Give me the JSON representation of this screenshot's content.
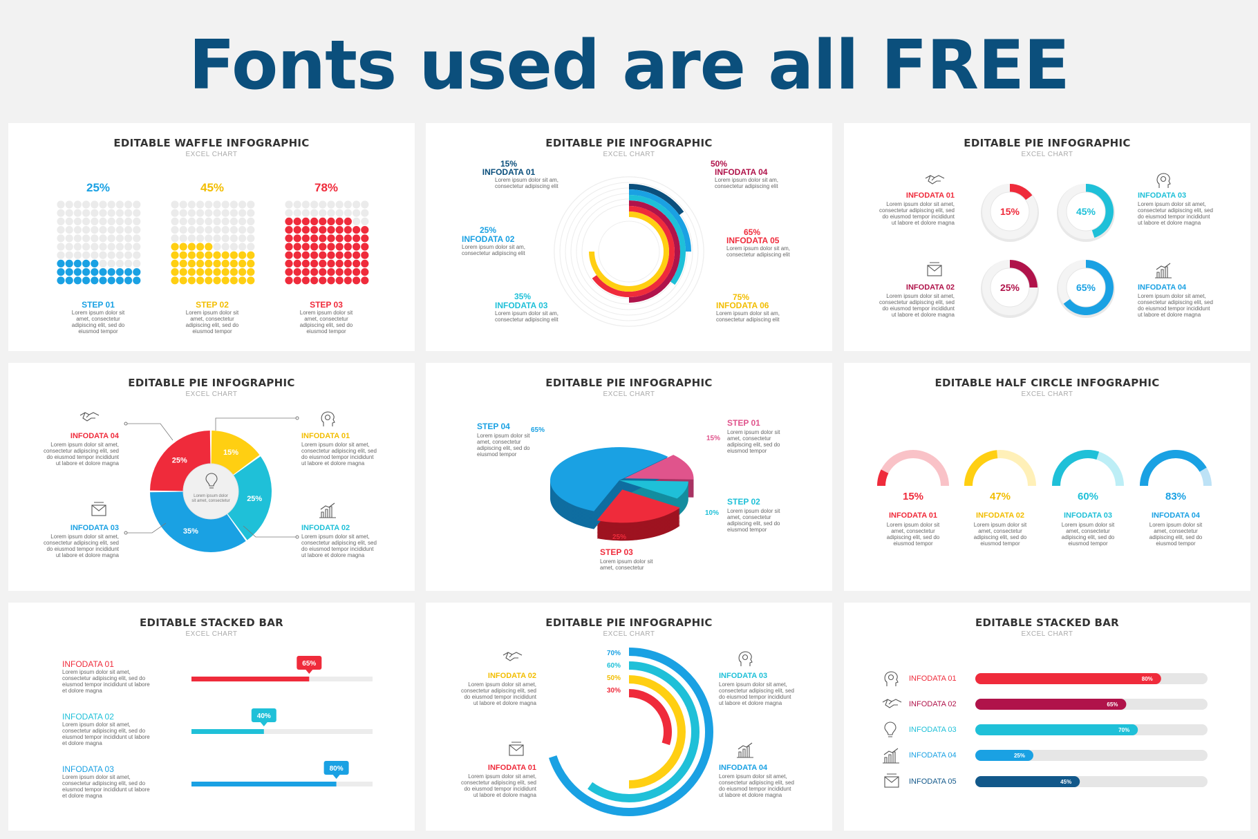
{
  "hero_title": "Fonts used are all FREE",
  "colors": {
    "navy": "#0b4f7c",
    "blue": "#1aa1e3",
    "cyan": "#1fc0d8",
    "yellow": "#ffcf12",
    "red": "#ef2b3b",
    "crimson": "#b0134a",
    "pink": "#e0548c",
    "darkblue": "#12588a"
  },
  "lorem_short": "Lorem ipsum dolor sit amet, consectetur adipiscing elit, sed do eiusmod tempor",
  "lorem_long": "Lorem ipsum dolor sit amet, consectetur adipiscing elit, sed do eiusmod tempor incididunt ut labore et dolore magna",
  "lorem_two": "Lorem ipsum dolor sit am, consectetur adipiscing elit",
  "lorem_step3": "Lorem ipsum dolor sit amet, consectetur",
  "chart_data": [
    {
      "type": "waffle",
      "title": "EDITABLE WAFFLE INFOGRAPHIC",
      "subtitle": "EXCEL CHART",
      "items": [
        {
          "label": "STEP 01",
          "value": 25,
          "display": "25%",
          "color": "#1aa1e3"
        },
        {
          "label": "STEP 02",
          "value": 45,
          "display": "45%",
          "color": "#ffcf12"
        },
        {
          "label": "STEP 03",
          "value": 78,
          "display": "78%",
          "color": "#ef2b3b"
        }
      ]
    },
    {
      "type": "pie",
      "title": "EDITABLE PIE INFOGRAPHIC",
      "subtitle": "EXCEL CHART",
      "items": [
        {
          "label": "INFODATA 01",
          "value": 15,
          "display": "15%",
          "color": "#0b4f7c"
        },
        {
          "label": "INFODATA 02",
          "value": 25,
          "display": "25%",
          "color": "#1aa1e3"
        },
        {
          "label": "INFODATA 03",
          "value": 35,
          "display": "35%",
          "color": "#1fc0d8"
        },
        {
          "label": "INFODATA 04",
          "value": 50,
          "display": "50%",
          "color": "#b0134a"
        },
        {
          "label": "INFODATA 05",
          "value": 65,
          "display": "65%",
          "color": "#ef2b3b"
        },
        {
          "label": "INFODATA 06",
          "value": 75,
          "display": "75%",
          "color": "#ffcf12"
        }
      ]
    },
    {
      "type": "pie",
      "title": "EDITABLE PIE INFOGRAPHIC",
      "subtitle": "EXCEL CHART",
      "items": [
        {
          "label": "INFODATA 01",
          "value": 15,
          "display": "15%",
          "color": "#ef2b3b",
          "icon": "handshake-icon"
        },
        {
          "label": "INFODATA 02",
          "value": 25,
          "display": "25%",
          "color": "#b0134a",
          "icon": "envelope-icon"
        },
        {
          "label": "INFODATA 03",
          "value": 45,
          "display": "45%",
          "color": "#1fc0d8",
          "icon": "head-gear-icon"
        },
        {
          "label": "INFODATA 04",
          "value": 65,
          "display": "65%",
          "color": "#1aa1e3",
          "icon": "bar-chart-icon"
        }
      ]
    },
    {
      "type": "pie",
      "title": "EDITABLE PIE INFOGRAPHIC",
      "subtitle": "EXCEL CHART",
      "items": [
        {
          "label": "INFODATA 01",
          "value": 15,
          "display": "15%",
          "color": "#ffcf12",
          "icon": "head-gear-icon"
        },
        {
          "label": "INFODATA 02",
          "value": 25,
          "display": "25%",
          "color": "#1fc0d8",
          "icon": "bar-chart-icon"
        },
        {
          "label": "INFODATA 03",
          "value": 35,
          "display": "35%",
          "color": "#1aa1e3",
          "icon": "envelope-icon"
        },
        {
          "label": "INFODATA 04",
          "value": 25,
          "display": "25%",
          "color": "#ef2b3b",
          "icon": "handshake-icon"
        }
      ]
    },
    {
      "type": "pie",
      "title": "EDITABLE PIE INFOGRAPHIC",
      "subtitle": "EXCEL CHART",
      "items": [
        {
          "label": "STEP 01",
          "value": 15,
          "display": "15%",
          "color": "#e0548c"
        },
        {
          "label": "STEP 02",
          "value": 10,
          "display": "10%",
          "color": "#1fc0d8"
        },
        {
          "label": "STEP 03",
          "value": 25,
          "display": "25%",
          "color": "#ef2b3b"
        },
        {
          "label": "STEP 04",
          "value": 65,
          "display": "65%",
          "color": "#1aa1e3"
        }
      ]
    },
    {
      "type": "half-donut",
      "title": "EDITABLE HALF CIRCLE INFOGRAPHIC",
      "subtitle": "EXCEL CHART",
      "items": [
        {
          "label": "INFODATA 01",
          "value": 15,
          "display": "15%",
          "color": "#ef2b3b",
          "track": "#f9c2c7"
        },
        {
          "label": "INFODATA 02",
          "value": 47,
          "display": "47%",
          "color": "#ffcf12",
          "track": "#fff0b8"
        },
        {
          "label": "INFODATA 03",
          "value": 60,
          "display": "60%",
          "color": "#1fc0d8",
          "track": "#bdeef6"
        },
        {
          "label": "INFODATA 04",
          "value": 83,
          "display": "83%",
          "color": "#1aa1e3",
          "track": "#bde2f6"
        }
      ]
    },
    {
      "type": "bar",
      "title": "EDITABLE STACKED BAR",
      "subtitle": "EXCEL CHART",
      "items": [
        {
          "label": "INFODATA 01",
          "value": 65,
          "display": "65%",
          "color": "#ef2b3b"
        },
        {
          "label": "INFODATA 02",
          "value": 40,
          "display": "40%",
          "color": "#1fc0d8"
        },
        {
          "label": "INFODATA 03",
          "value": 80,
          "display": "80%",
          "color": "#1aa1e3"
        }
      ]
    },
    {
      "type": "pie",
      "title": "EDITABLE PIE INFOGRAPHIC",
      "subtitle": "EXCEL CHART",
      "items": [
        {
          "label": "INFODATA 01",
          "value": 30,
          "display": "30%",
          "color": "#ef2b3b",
          "icon": "envelope-icon"
        },
        {
          "label": "INFODATA 02",
          "value": 50,
          "display": "50%",
          "color": "#ffcf12",
          "icon": "handshake-icon"
        },
        {
          "label": "INFODATA 03",
          "value": 60,
          "display": "60%",
          "color": "#1fc0d8",
          "icon": "head-gear-icon"
        },
        {
          "label": "INFODATA 04",
          "value": 70,
          "display": "70%",
          "color": "#1aa1e3",
          "icon": "bar-chart-icon"
        }
      ]
    },
    {
      "type": "bar",
      "title": "EDITABLE STACKED BAR",
      "subtitle": "EXCEL CHART",
      "items": [
        {
          "label": "INFODATA 01",
          "value": 80,
          "display": "80%",
          "color": "#ef2b3b",
          "icon": "head-gear-icon"
        },
        {
          "label": "INFODATA 02",
          "value": 65,
          "display": "65%",
          "color": "#b0134a",
          "icon": "handshake-icon"
        },
        {
          "label": "INFODATA 03",
          "value": 70,
          "display": "70%",
          "color": "#1fc0d8",
          "icon": "lightbulb-icon"
        },
        {
          "label": "INFODATA 04",
          "value": 25,
          "display": "25%",
          "color": "#1aa1e3",
          "icon": "bar-chart-icon"
        },
        {
          "label": "INFODATA 05",
          "value": 45,
          "display": "45%",
          "color": "#12588a",
          "icon": "envelope-icon"
        }
      ]
    }
  ]
}
